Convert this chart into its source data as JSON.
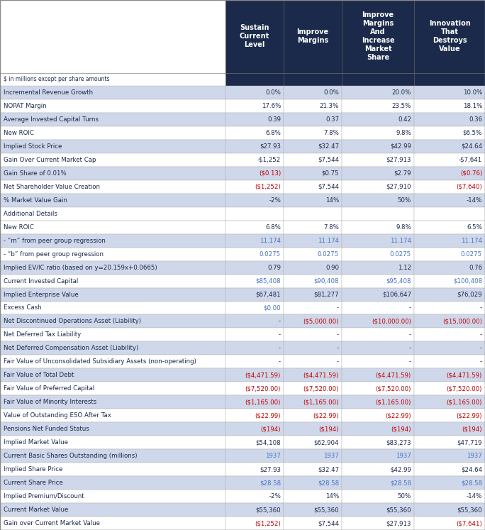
{
  "header_bg": "#1b2a4a",
  "header_text": "#ffffff",
  "row_bg_light": "#cfd8ea",
  "row_bg_white": "#ffffff",
  "text_dark": "#1b2a4a",
  "text_red": "#c00000",
  "text_blue": "#4472c4",
  "col_headers": [
    "Sustain\nCurrent\nLevel",
    "Improve\nMargins",
    "Improve\nMargins\nAnd\nIncrease\nMarket\nShare",
    "Innovation\nThat\nDestroys\nValue"
  ],
  "subtitle": "$ in millions except per share amounts",
  "rows": [
    {
      "label": "Incremental Revenue Growth",
      "values": [
        "0.0%",
        "0.0%",
        "20.0%",
        "10.0%"
      ],
      "colors": [
        "dark",
        "dark",
        "dark",
        "dark"
      ],
      "bg": "light"
    },
    {
      "label": "NOPAT Margin",
      "values": [
        "17.6%",
        "21.3%",
        "23.5%",
        "18.1%"
      ],
      "colors": [
        "dark",
        "dark",
        "dark",
        "dark"
      ],
      "bg": "white"
    },
    {
      "label": "Average Invested Capital Turns",
      "values": [
        "0.39",
        "0.37",
        "0.42",
        "0.36"
      ],
      "colors": [
        "dark",
        "dark",
        "dark",
        "dark"
      ],
      "bg": "light"
    },
    {
      "label": "New ROIC",
      "values": [
        "6.8%",
        "7.8%",
        "9.8%",
        "$6.5%"
      ],
      "colors": [
        "dark",
        "dark",
        "dark",
        "dark"
      ],
      "bg": "white"
    },
    {
      "label": "Implied Stock Price",
      "values": [
        "$27.93",
        "$32.47",
        "$42.99",
        "$24.64"
      ],
      "colors": [
        "dark",
        "dark",
        "dark",
        "dark"
      ],
      "bg": "light"
    },
    {
      "label": "Gain Over Current Market Cap",
      "values": [
        "-$1,252",
        "$7,544",
        "$27,913",
        "-$7,641"
      ],
      "colors": [
        "dark",
        "dark",
        "dark",
        "dark"
      ],
      "bg": "white"
    },
    {
      "label": "Gain Share of 0.01%",
      "values": [
        "($0.13)",
        "$0.75",
        "$2.79",
        "($0.76)"
      ],
      "colors": [
        "red",
        "dark",
        "dark",
        "red"
      ],
      "bg": "light"
    },
    {
      "label": "Net Shareholder Value Creation",
      "values": [
        "($1,252)",
        "$7,544",
        "$27,910",
        "($7,640)"
      ],
      "colors": [
        "red",
        "dark",
        "dark",
        "red"
      ],
      "bg": "white"
    },
    {
      "label": "% Market Value Gain",
      "values": [
        "-2%",
        "14%",
        "50%",
        "-14%"
      ],
      "colors": [
        "dark",
        "dark",
        "dark",
        "dark"
      ],
      "bg": "light"
    },
    {
      "label": "Additional Details",
      "values": [
        "",
        "",
        "",
        ""
      ],
      "colors": [
        "dark",
        "dark",
        "dark",
        "dark"
      ],
      "bg": "section"
    },
    {
      "label": "New ROIC",
      "values": [
        "6.8%",
        "7.8%",
        "9.8%",
        "6.5%"
      ],
      "colors": [
        "dark",
        "dark",
        "dark",
        "dark"
      ],
      "bg": "white"
    },
    {
      "label": "- “m” from peer group regression",
      "values": [
        "11.174",
        "11.174",
        "11.174",
        "11.174"
      ],
      "colors": [
        "blue",
        "blue",
        "blue",
        "blue"
      ],
      "bg": "light"
    },
    {
      "label": "- “b” from peer group regression",
      "values": [
        "0.0275",
        "0.0275",
        "0.0275",
        "0.0275"
      ],
      "colors": [
        "blue",
        "blue",
        "blue",
        "blue"
      ],
      "bg": "white"
    },
    {
      "label": "Implied EV/IC ratio (based on y=20.159x+0.0665)",
      "values": [
        "0.79",
        "0.90",
        "1.12",
        "0.76"
      ],
      "colors": [
        "dark",
        "dark",
        "dark",
        "dark"
      ],
      "bg": "light"
    },
    {
      "label": "Current Invested Capital",
      "values": [
        "$85,408",
        "$90,408",
        "$95,408",
        "$100,408"
      ],
      "colors": [
        "blue",
        "blue",
        "blue",
        "blue"
      ],
      "bg": "white"
    },
    {
      "label": "Implied Enterprise Value",
      "values": [
        "$67,481",
        "$81,277",
        "$106,647",
        "$76,029"
      ],
      "colors": [
        "dark",
        "dark",
        "dark",
        "dark"
      ],
      "bg": "light"
    },
    {
      "label": "Excess Cash",
      "values": [
        "$0.00",
        "-",
        "-",
        "-"
      ],
      "colors": [
        "blue",
        "dark",
        "dark",
        "dark"
      ],
      "bg": "white"
    },
    {
      "label": "Net Discontinued Operations Asset (Liability)",
      "values": [
        "-",
        "($5,000.00)",
        "($10,000.00)",
        "($15,000.00)"
      ],
      "colors": [
        "dark",
        "red",
        "red",
        "red"
      ],
      "bg": "light"
    },
    {
      "label": "Net Deferred Tax Liability",
      "values": [
        "-",
        "-",
        "-",
        "-"
      ],
      "colors": [
        "dark",
        "dark",
        "dark",
        "dark"
      ],
      "bg": "white"
    },
    {
      "label": "Net Deferred Compensation Asset (Liability)",
      "values": [
        "-",
        "-",
        "-",
        "-"
      ],
      "colors": [
        "dark",
        "dark",
        "dark",
        "dark"
      ],
      "bg": "light"
    },
    {
      "label": "Fair Value of Unconsolidated Subsidiary Assets (non-operating)",
      "values": [
        "-",
        "-",
        "-",
        "-"
      ],
      "colors": [
        "dark",
        "dark",
        "dark",
        "dark"
      ],
      "bg": "white"
    },
    {
      "label": "Fair Value of Total Debt",
      "values": [
        "($4,471.59)",
        "($4,471.59)",
        "($4,471.59)",
        "($4,471.59)"
      ],
      "colors": [
        "red",
        "red",
        "red",
        "red"
      ],
      "bg": "light"
    },
    {
      "label": "Fair Value of Preferred Capital",
      "values": [
        "($7,520.00)",
        "($7,520.00)",
        "($7,520.00)",
        "($7,520.00)"
      ],
      "colors": [
        "red",
        "red",
        "red",
        "red"
      ],
      "bg": "white"
    },
    {
      "label": "Fair Value of Minority Interests",
      "values": [
        "($1,165.00)",
        "($1,165.00)",
        "($1,165.00)",
        "($1,165.00)"
      ],
      "colors": [
        "red",
        "red",
        "red",
        "red"
      ],
      "bg": "light"
    },
    {
      "label": "Value of Outstanding ESO After Tax",
      "values": [
        "($22.99)",
        "($22.99)",
        "($22.99)",
        "($22.99)"
      ],
      "colors": [
        "red",
        "red",
        "red",
        "red"
      ],
      "bg": "white"
    },
    {
      "label": "Pensions Net Funded Status",
      "values": [
        "($194)",
        "($194)",
        "($194)",
        "($194)"
      ],
      "colors": [
        "red",
        "red",
        "red",
        "red"
      ],
      "bg": "light"
    },
    {
      "label": "Implied Market Value",
      "values": [
        "$54,108",
        "$62,904",
        "$83,273",
        "$47,719"
      ],
      "colors": [
        "dark",
        "dark",
        "dark",
        "dark"
      ],
      "bg": "white"
    },
    {
      "label": "Current Basic Shares Outstanding (millions)",
      "values": [
        "1937",
        "1937",
        "1937",
        "1937"
      ],
      "colors": [
        "blue",
        "blue",
        "blue",
        "blue"
      ],
      "bg": "light"
    },
    {
      "label": "Implied Share Price",
      "values": [
        "$27.93",
        "$32.47",
        "$42.99",
        "$24.64"
      ],
      "colors": [
        "dark",
        "dark",
        "dark",
        "dark"
      ],
      "bg": "white"
    },
    {
      "label": "Current Share Price",
      "values": [
        "$28.58",
        "$28.58",
        "$28.58",
        "$28.58"
      ],
      "colors": [
        "blue",
        "blue",
        "blue",
        "blue"
      ],
      "bg": "light"
    },
    {
      "label": "Implied Premium/Discount",
      "values": [
        "-2%",
        "14%",
        "50%",
        "-14%"
      ],
      "colors": [
        "dark",
        "dark",
        "dark",
        "dark"
      ],
      "bg": "white"
    },
    {
      "label": "Current Market Value",
      "values": [
        "$55,360",
        "$55,360",
        "$55,360",
        "$55,360"
      ],
      "colors": [
        "dark",
        "dark",
        "dark",
        "dark"
      ],
      "bg": "light"
    },
    {
      "label": "Gain over Current Market Value",
      "values": [
        "($1,252)",
        "$7,544",
        "$27,913",
        "($7,641)"
      ],
      "colors": [
        "red",
        "dark",
        "dark",
        "red"
      ],
      "bg": "white"
    }
  ]
}
